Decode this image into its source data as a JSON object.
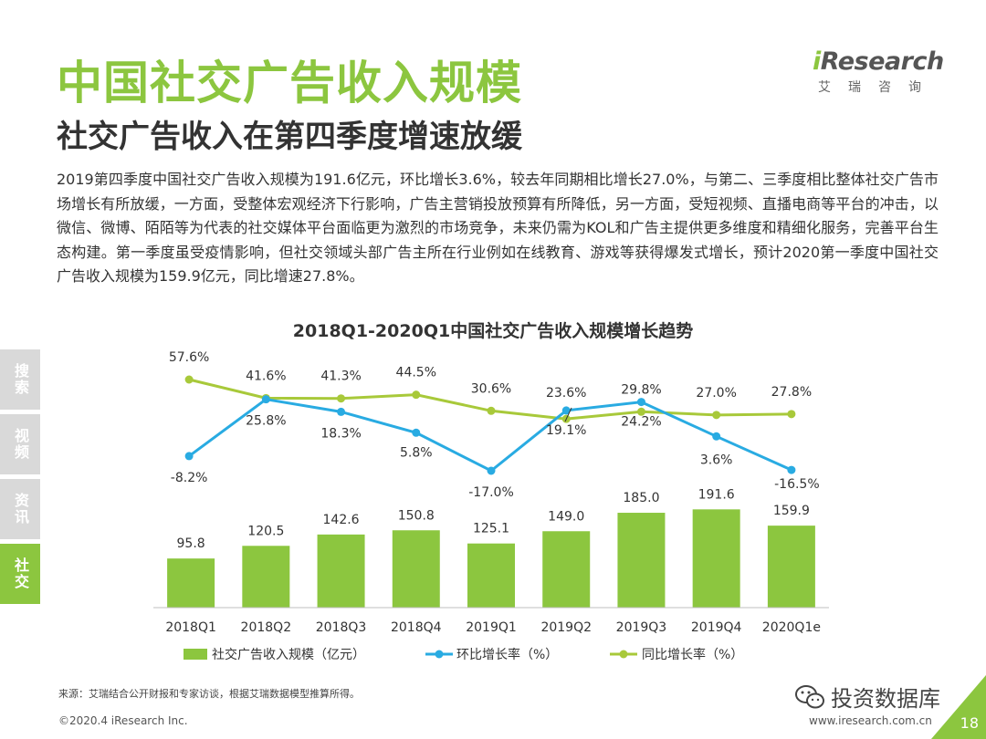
{
  "header": {
    "title": "中国社交广告收入规模",
    "subtitle": "社交广告收入在第四季度增速放缓",
    "logo_text_i": "i",
    "logo_text_rest": "Research",
    "logo_cn": "艾瑞咨询"
  },
  "body_text": "2019第四季度中国社交广告收入规模为191.6亿元，环比增长3.6%，较去年同期相比增长27.0%，与第二、三季度相比整体社交广告市场增长有所放缓，一方面，受整体宏观经济下行影响，广告主营销投放预算有所降低，另一方面，受短视频、直播电商等平台的冲击，以微信、微博、陌陌等为代表的社交媒体平台面临更为激烈的市场竞争，未来仍需为KOL和广告主提供更多维度和精细化服务，完善平台生态构建。第一季度虽受疫情影响，但社交领域头部广告主所在行业例如在线教育、游戏等获得爆发式增长，预计2020第一季度中国社交广告收入规模为159.9亿元，同比增速27.8%。",
  "side_tabs": [
    "搜索",
    "视频",
    "资讯",
    "社交"
  ],
  "chart_data": {
    "type": "bar+line",
    "title": "2018Q1-2020Q1中国社交广告收入规模增长趋势",
    "categories": [
      "2018Q1",
      "2018Q2",
      "2018Q3",
      "2018Q4",
      "2019Q1",
      "2019Q2",
      "2019Q3",
      "2019Q4",
      "2020Q1e"
    ],
    "series": [
      {
        "name": "社交广告收入规模（亿元）",
        "type": "bar",
        "values": [
          95.8,
          120.5,
          142.6,
          150.8,
          125.1,
          149.0,
          185.0,
          191.6,
          159.9
        ],
        "labels": [
          "95.8",
          "120.5",
          "142.6",
          "150.8",
          "125.1",
          "149.0",
          "185.0",
          "191.6",
          "159.9"
        ],
        "color": "#8cc63f"
      },
      {
        "name": "环比增长率（%）",
        "type": "line",
        "values": [
          -8.2,
          25.8,
          18.3,
          5.8,
          -17.0,
          19.1,
          24.2,
          3.6,
          -16.5
        ],
        "labels": [
          "-8.2%",
          "25.8%",
          "18.3%",
          "5.8%",
          "-17.0%",
          "19.1%",
          "24.2%",
          "3.6%",
          "-16.5%"
        ],
        "color": "#29abe2"
      },
      {
        "name": "同比增长率（%）",
        "type": "line",
        "values": [
          57.6,
          41.6,
          41.3,
          44.5,
          30.6,
          23.6,
          29.8,
          27.0,
          27.8
        ],
        "labels": [
          "57.6%",
          "41.6%",
          "41.3%",
          "44.5%",
          "30.6%",
          "23.6%",
          "29.8%",
          "27.0%",
          "27.8%"
        ],
        "color": "#a8c93a"
      }
    ],
    "legend_position": "bottom"
  },
  "source": "来源：艾瑞结合公开财报和专家访谈，根据艾瑞数据模型推算所得。",
  "footer": {
    "copyright": "©2020.4 iResearch Inc.",
    "url": "www.iresearch.com.cn",
    "page_number": "18",
    "wechat_label": "投资数据库"
  }
}
